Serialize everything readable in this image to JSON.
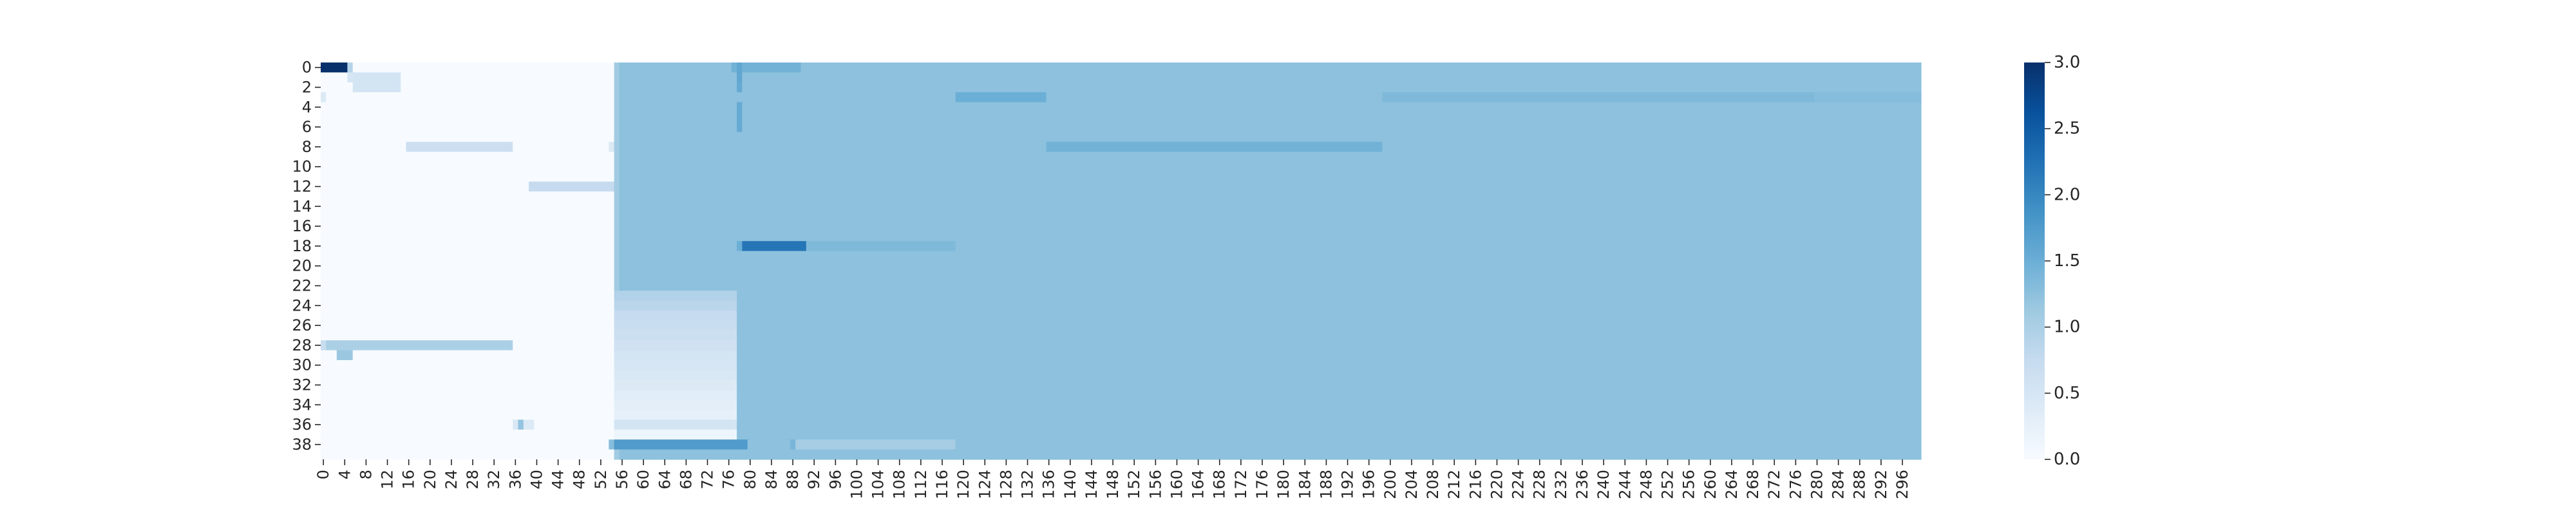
{
  "chart_data": {
    "type": "heatmap",
    "title": "",
    "xlabel": "",
    "ylabel": "",
    "n_rows": 40,
    "n_cols": 300,
    "x_tick_step": 4,
    "y_tick_step": 2,
    "x_tick_labels": [
      "0",
      "4",
      "8",
      "12",
      "16",
      "20",
      "24",
      "28",
      "32",
      "36",
      "40",
      "44",
      "48",
      "52",
      "56",
      "60",
      "64",
      "68",
      "72",
      "76",
      "80",
      "84",
      "88",
      "92",
      "96",
      "100",
      "104",
      "108",
      "112",
      "116",
      "120",
      "124",
      "128",
      "132",
      "136",
      "140",
      "144",
      "148",
      "152",
      "156",
      "160",
      "164",
      "168",
      "172",
      "176",
      "180",
      "184",
      "188",
      "192",
      "196",
      "200",
      "204",
      "208",
      "212",
      "216",
      "220",
      "224",
      "228",
      "232",
      "236",
      "240",
      "244",
      "248",
      "252",
      "256",
      "260",
      "264",
      "268",
      "272",
      "276",
      "280",
      "284",
      "288",
      "292",
      "296"
    ],
    "y_tick_labels": [
      "0",
      "2",
      "4",
      "6",
      "8",
      "10",
      "12",
      "14",
      "16",
      "18",
      "20",
      "22",
      "24",
      "26",
      "28",
      "30",
      "32",
      "34",
      "36",
      "38"
    ],
    "vmin": 0,
    "vmax": 3,
    "colormap": "Blues",
    "colorbar": {
      "ticks": [
        0.0,
        0.5,
        1.0,
        1.5,
        2.0,
        2.5,
        3.0
      ],
      "tick_labels": [
        "0.0",
        "0.5",
        "1.0",
        "1.5",
        "2.0",
        "2.5",
        "3.0"
      ]
    },
    "default_value": 0,
    "region_rule": "cells not listed below: columns 0-54 = 0.0; columns 55-299 = 1.25; column 55 = 1.1",
    "regions": [
      {
        "rows": [
          0,
          39
        ],
        "cols": [
          0,
          54
        ],
        "value": 0.0
      },
      {
        "rows": [
          0,
          39
        ],
        "cols": [
          55,
          299
        ],
        "value": 1.25
      },
      {
        "rows": [
          0,
          39
        ],
        "cols": [
          55,
          55
        ],
        "value": 1.1
      },
      {
        "rows": [
          0,
          0
        ],
        "cols": [
          0,
          4
        ],
        "value": 3.0
      },
      {
        "rows": [
          0,
          0
        ],
        "cols": [
          5,
          5
        ],
        "value": 0.9
      },
      {
        "rows": [
          0,
          0
        ],
        "cols": [
          77,
          89
        ],
        "value": 1.45
      },
      {
        "rows": [
          0,
          1
        ],
        "cols": [
          78,
          78
        ],
        "value": 1.6
      },
      {
        "rows": [
          1,
          1
        ],
        "cols": [
          5,
          5
        ],
        "value": 0.5
      },
      {
        "rows": [
          1,
          2
        ],
        "cols": [
          6,
          14
        ],
        "value": 0.55
      },
      {
        "rows": [
          2,
          2
        ],
        "cols": [
          78,
          78
        ],
        "value": 1.55
      },
      {
        "rows": [
          3,
          3
        ],
        "cols": [
          0,
          0
        ],
        "value": 0.4
      },
      {
        "rows": [
          3,
          3
        ],
        "cols": [
          119,
          135
        ],
        "value": 1.5
      },
      {
        "rows": [
          3,
          3
        ],
        "cols": [
          199,
          279
        ],
        "value": 1.35
      },
      {
        "rows": [
          3,
          3
        ],
        "cols": [
          280,
          299
        ],
        "value": 1.3
      },
      {
        "rows": [
          4,
          6
        ],
        "cols": [
          78,
          78
        ],
        "value": 1.55
      },
      {
        "rows": [
          8,
          8
        ],
        "cols": [
          16,
          35
        ],
        "value": 0.65
      },
      {
        "rows": [
          8,
          8
        ],
        "cols": [
          54,
          54
        ],
        "value": 0.4
      },
      {
        "rows": [
          8,
          8
        ],
        "cols": [
          136,
          198
        ],
        "value": 1.45
      },
      {
        "rows": [
          12,
          12
        ],
        "cols": [
          39,
          54
        ],
        "value": 0.75
      },
      {
        "rows": [
          18,
          18
        ],
        "cols": [
          78,
          78
        ],
        "value": 1.5
      },
      {
        "rows": [
          18,
          18
        ],
        "cols": [
          79,
          90
        ],
        "value": 2.2
      },
      {
        "rows": [
          18,
          18
        ],
        "cols": [
          91,
          118
        ],
        "value": 1.35
      },
      {
        "rows": [
          23,
          23
        ],
        "cols": [
          55,
          77
        ],
        "value": 0.95
      },
      {
        "rows": [
          24,
          24
        ],
        "cols": [
          55,
          77
        ],
        "value": 0.85
      },
      {
        "rows": [
          25,
          25
        ],
        "cols": [
          55,
          77
        ],
        "value": 0.75
      },
      {
        "rows": [
          26,
          26
        ],
        "cols": [
          55,
          77
        ],
        "value": 0.7
      },
      {
        "rows": [
          27,
          27
        ],
        "cols": [
          55,
          77
        ],
        "value": 0.65
      },
      {
        "rows": [
          28,
          28
        ],
        "cols": [
          0,
          0
        ],
        "value": 0.7
      },
      {
        "rows": [
          28,
          28
        ],
        "cols": [
          1,
          35
        ],
        "value": 1.0
      },
      {
        "rows": [
          28,
          28
        ],
        "cols": [
          55,
          77
        ],
        "value": 0.6
      },
      {
        "rows": [
          29,
          29
        ],
        "cols": [
          3,
          5
        ],
        "value": 1.15
      },
      {
        "rows": [
          29,
          29
        ],
        "cols": [
          55,
          77
        ],
        "value": 0.55
      },
      {
        "rows": [
          30,
          30
        ],
        "cols": [
          55,
          77
        ],
        "value": 0.5
      },
      {
        "rows": [
          31,
          31
        ],
        "cols": [
          55,
          77
        ],
        "value": 0.45
      },
      {
        "rows": [
          32,
          32
        ],
        "cols": [
          55,
          77
        ],
        "value": 0.4
      },
      {
        "rows": [
          33,
          33
        ],
        "cols": [
          55,
          77
        ],
        "value": 0.35
      },
      {
        "rows": [
          34,
          34
        ],
        "cols": [
          55,
          77
        ],
        "value": 0.3
      },
      {
        "rows": [
          35,
          35
        ],
        "cols": [
          55,
          77
        ],
        "value": 0.25
      },
      {
        "rows": [
          36,
          36
        ],
        "cols": [
          36,
          36
        ],
        "value": 0.45
      },
      {
        "rows": [
          36,
          36
        ],
        "cols": [
          37,
          37
        ],
        "value": 1.2
      },
      {
        "rows": [
          36,
          36
        ],
        "cols": [
          38,
          39
        ],
        "value": 0.4
      },
      {
        "rows": [
          36,
          36
        ],
        "cols": [
          55,
          77
        ],
        "value": 0.55
      },
      {
        "rows": [
          37,
          37
        ],
        "cols": [
          55,
          77
        ],
        "value": 0.15
      },
      {
        "rows": [
          38,
          38
        ],
        "cols": [
          54,
          54
        ],
        "value": 1.3
      },
      {
        "rows": [
          38,
          38
        ],
        "cols": [
          55,
          79
        ],
        "value": 1.75
      },
      {
        "rows": [
          38,
          38
        ],
        "cols": [
          88,
          88
        ],
        "value": 1.4
      },
      {
        "rows": [
          38,
          38
        ],
        "cols": [
          89,
          118
        ],
        "value": 1.05
      }
    ]
  }
}
